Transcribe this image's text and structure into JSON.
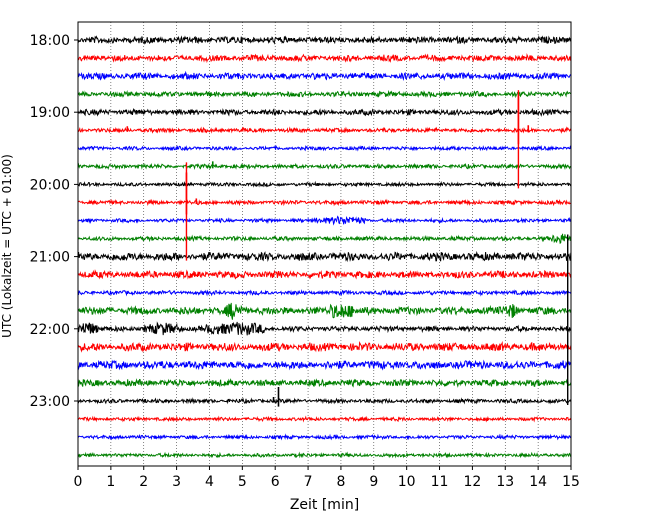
{
  "chart_data": {
    "type": "line",
    "title": "",
    "xlabel": "Zeit  [min]",
    "ylabel": "UTC (Lokalzeit = UTC + 01:00)",
    "xlim": [
      0,
      15
    ],
    "x_ticks": [
      "0",
      "1",
      "2",
      "3",
      "4",
      "5",
      "6",
      "7",
      "8",
      "9",
      "10",
      "11",
      "12",
      "13",
      "14",
      "15"
    ],
    "y_ticks": [
      "18:00",
      "19:00",
      "20:00",
      "21:00",
      "22:00",
      "23:00"
    ],
    "grid": "vertical dotted at each minute",
    "trace_colors": [
      "#000000",
      "#ff0000",
      "#0000ff",
      "#008000"
    ],
    "trace_interval_minutes": 15,
    "traces": [
      {
        "start": "18:00",
        "color": "#000000",
        "noise": 0.9
      },
      {
        "start": "18:15",
        "color": "#ff0000",
        "noise": 0.8
      },
      {
        "start": "18:30",
        "color": "#0000ff",
        "noise": 0.9
      },
      {
        "start": "18:45",
        "color": "#008000",
        "noise": 0.6
      },
      {
        "start": "19:00",
        "color": "#000000",
        "noise": 0.7
      },
      {
        "start": "19:15",
        "color": "#ff0000",
        "noise": 0.4,
        "spikes": [
          {
            "x": 1.5,
            "amp": 4
          },
          {
            "x": 13.4,
            "amp": 35
          },
          {
            "x": 13.7,
            "amp": 5
          }
        ]
      },
      {
        "start": "19:30",
        "color": "#0000ff",
        "noise": 0.3
      },
      {
        "start": "19:45",
        "color": "#008000",
        "noise": 0.4,
        "spikes": [
          {
            "x": 4.1,
            "amp": 5
          }
        ]
      },
      {
        "start": "20:00",
        "color": "#000000",
        "noise": 0.3
      },
      {
        "start": "20:15",
        "color": "#ff0000",
        "noise": 0.4,
        "spikes": [
          {
            "x": 3.3,
            "amp": 30
          },
          {
            "x": 3.6,
            "amp": 4
          }
        ]
      },
      {
        "start": "20:30",
        "color": "#0000ff",
        "noise": 0.3,
        "bursts": [
          {
            "from": 7.2,
            "to": 8.8,
            "amp": 3
          }
        ]
      },
      {
        "start": "20:45",
        "color": "#008000",
        "noise": 0.4,
        "bursts": [
          {
            "from": 14.4,
            "to": 15,
            "amp": 4
          }
        ]
      },
      {
        "start": "21:00",
        "color": "#000000",
        "noise": 1.2
      },
      {
        "start": "21:15",
        "color": "#ff0000",
        "noise": 1.0
      },
      {
        "start": "21:30",
        "color": "#0000ff",
        "noise": 0.4
      },
      {
        "start": "21:45",
        "color": "#008000",
        "noise": 1.1,
        "bursts": [
          {
            "from": 4.5,
            "to": 5.0,
            "amp": 6
          },
          {
            "from": 7.6,
            "to": 8.4,
            "amp": 6
          },
          {
            "from": 13.0,
            "to": 13.4,
            "amp": 5
          }
        ]
      },
      {
        "start": "22:00",
        "color": "#000000",
        "noise": 0.6,
        "bursts": [
          {
            "from": 0.0,
            "to": 0.6,
            "amp": 6
          },
          {
            "from": 2.0,
            "to": 3.2,
            "amp": 4
          },
          {
            "from": 3.9,
            "to": 5.7,
            "amp": 5
          }
        ]
      },
      {
        "start": "22:15",
        "color": "#ff0000",
        "noise": 1.2
      },
      {
        "start": "22:30",
        "color": "#0000ff",
        "noise": 1.2
      },
      {
        "start": "22:45",
        "color": "#008000",
        "noise": 0.9
      },
      {
        "start": "23:00",
        "color": "#000000",
        "noise": 0.4,
        "spikes": [
          {
            "x": 6.1,
            "amp": 14
          },
          {
            "x": 5.95,
            "amp": 4
          }
        ]
      },
      {
        "start": "23:15",
        "color": "#ff0000",
        "noise": 0.3
      },
      {
        "start": "23:30",
        "color": "#0000ff",
        "noise": 0.3
      },
      {
        "start": "23:45",
        "color": "#008000",
        "noise": 0.3
      }
    ],
    "vertical_events": [
      {
        "x": 13.4,
        "from": "18:45",
        "to": "20:00",
        "color": "#ff0000"
      },
      {
        "x": 3.3,
        "from": "19:45",
        "to": "21:00",
        "color": "#ff0000"
      },
      {
        "x": 14.9,
        "from": "20:45",
        "to": "23:00",
        "color": "#000000"
      }
    ]
  }
}
